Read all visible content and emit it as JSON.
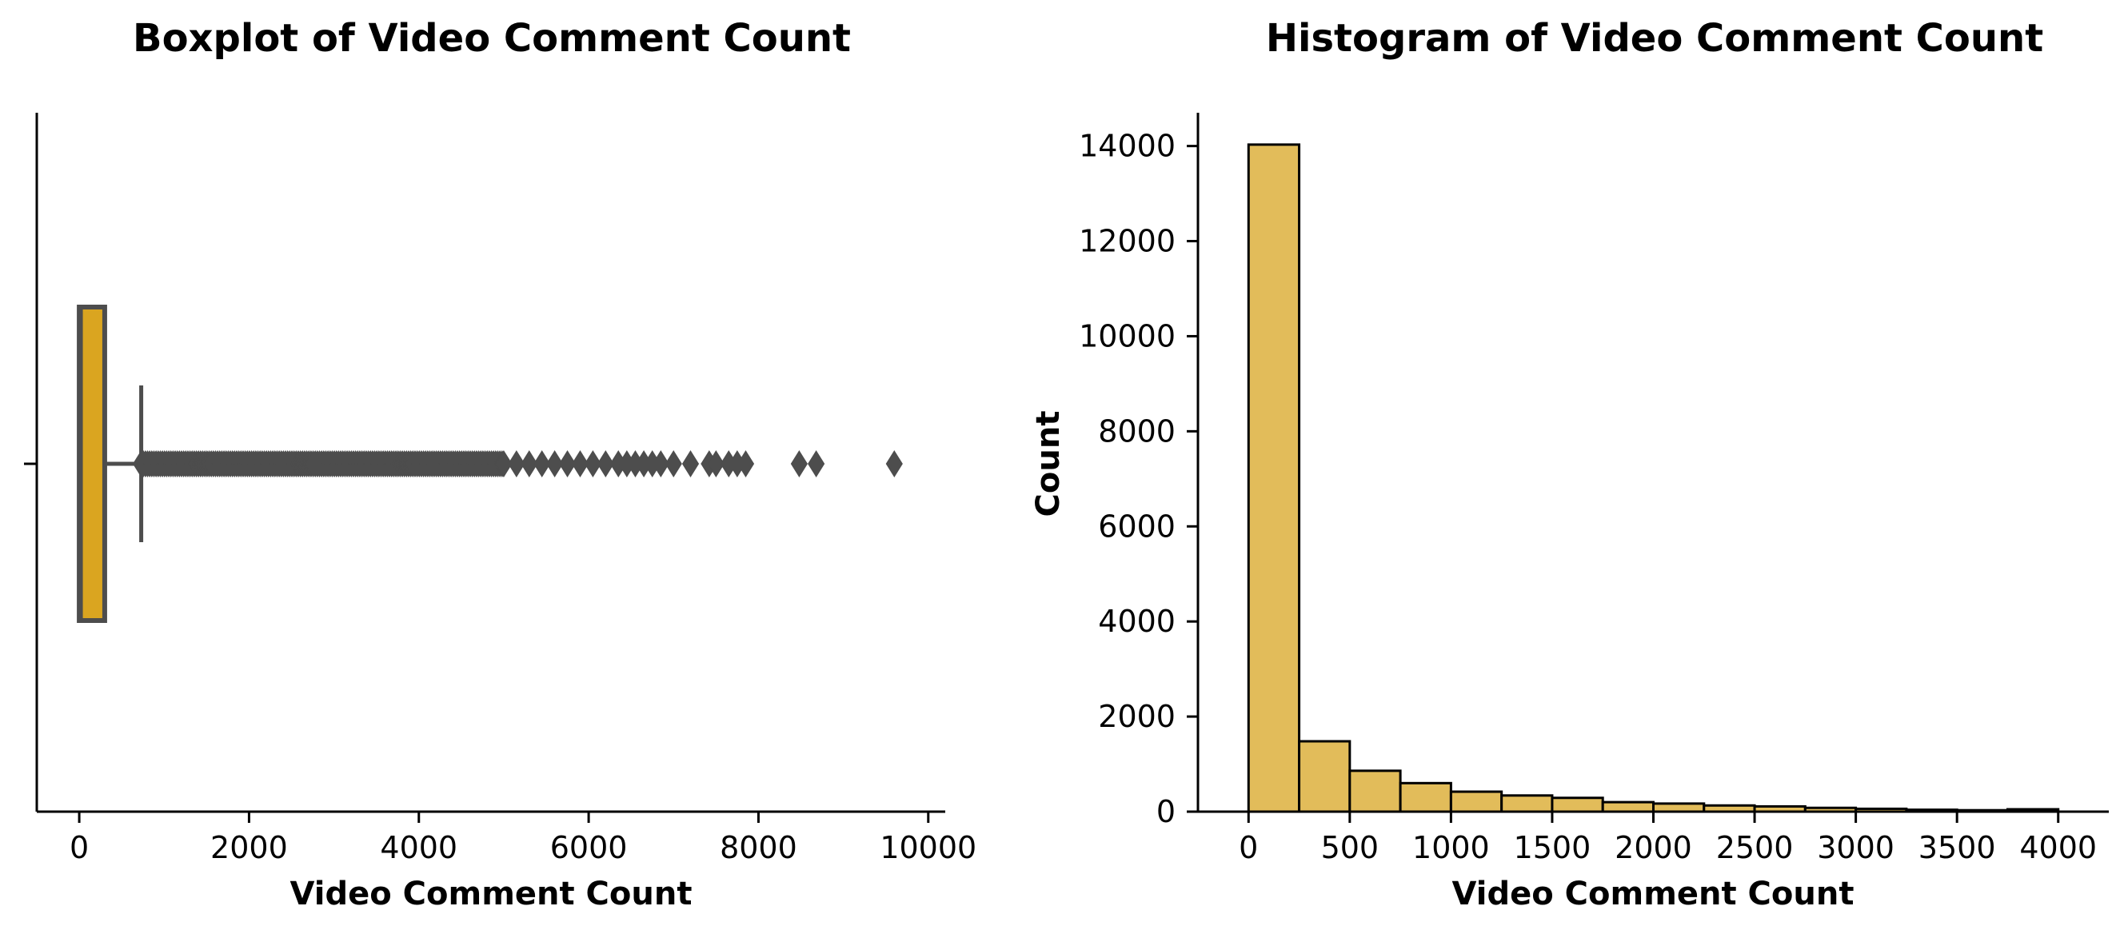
{
  "chart_data": [
    {
      "type": "boxplot",
      "title": "Boxplot of Video Comment Count",
      "xlabel": "Video Comment Count",
      "ylabel": "",
      "xlim": [
        -500,
        10200
      ],
      "xticks": [
        0,
        2000,
        4000,
        6000,
        8000,
        10000
      ],
      "box_color": "#daa520",
      "line_color": "#4d4d4d",
      "stats": {
        "min": 0,
        "q1": 0,
        "median": 0,
        "q3": 300,
        "whisker_low": 0,
        "whisker_high": 730
      },
      "outlier_range": [
        730,
        5000
      ],
      "outliers": [
        5000,
        5150,
        5300,
        5450,
        5600,
        5750,
        5900,
        6050,
        6200,
        6350,
        6450,
        6550,
        6650,
        6750,
        6850,
        7000,
        7200,
        7420,
        7500,
        7650,
        7750,
        7850,
        8480,
        8680,
        9600
      ]
    },
    {
      "type": "bar",
      "title": "Histogram of Video Comment Count",
      "xlabel": "Video Comment Count",
      "ylabel": "Count",
      "xlim": [
        -250,
        4250
      ],
      "ylim": [
        0,
        14700
      ],
      "xticks": [
        0,
        500,
        1000,
        1500,
        2000,
        2500,
        3000,
        3500,
        4000
      ],
      "yticks": [
        0,
        2000,
        4000,
        6000,
        8000,
        10000,
        12000,
        14000
      ],
      "bar_color": "#e2bc5a",
      "edge_color": "#000000",
      "bin_width": 250,
      "bin_starts": [
        0,
        250,
        500,
        750,
        1000,
        1250,
        1500,
        1750,
        2000,
        2250,
        2500,
        2750,
        3000,
        3250,
        3500,
        3750
      ],
      "values": [
        14030,
        1480,
        860,
        600,
        420,
        340,
        290,
        200,
        170,
        130,
        110,
        80,
        60,
        40,
        30,
        50
      ]
    }
  ]
}
